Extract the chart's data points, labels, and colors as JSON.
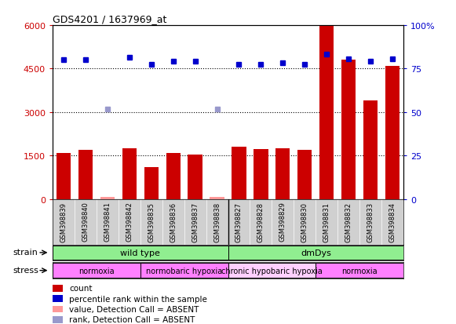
{
  "title": "GDS4201 / 1637969_at",
  "samples": [
    "GSM398839",
    "GSM398840",
    "GSM398841",
    "GSM398842",
    "GSM398835",
    "GSM398836",
    "GSM398837",
    "GSM398838",
    "GSM398827",
    "GSM398828",
    "GSM398829",
    "GSM398830",
    "GSM398831",
    "GSM398832",
    "GSM398833",
    "GSM398834"
  ],
  "count_values": [
    1600,
    1700,
    80,
    1750,
    1100,
    1580,
    1530,
    60,
    1800,
    1720,
    1750,
    1700,
    6000,
    4800,
    3400,
    4600
  ],
  "count_absent": [
    false,
    false,
    true,
    false,
    false,
    false,
    false,
    true,
    false,
    false,
    false,
    false,
    false,
    false,
    false,
    false
  ],
  "percentile_values": [
    4800,
    4800,
    null,
    4900,
    4650,
    4750,
    4750,
    null,
    4650,
    4650,
    4700,
    4650,
    5000,
    4850,
    4750,
    4850
  ],
  "percentile_absent": [
    false,
    false,
    true,
    false,
    false,
    false,
    false,
    true,
    false,
    false,
    false,
    false,
    false,
    false,
    false,
    false
  ],
  "absent_count_values": [
    null,
    null,
    80,
    null,
    null,
    null,
    null,
    60,
    null,
    null,
    null,
    null,
    null,
    null,
    null,
    null
  ],
  "absent_percentile_values": [
    null,
    null,
    3100,
    null,
    null,
    null,
    null,
    3100,
    null,
    null,
    null,
    null,
    null,
    null,
    null,
    null
  ],
  "strain_groups": [
    {
      "label": "wild type",
      "start": 0,
      "end": 8,
      "color": "#90EE90"
    },
    {
      "label": "dmDys",
      "start": 8,
      "end": 16,
      "color": "#90EE90"
    }
  ],
  "stress_groups": [
    {
      "label": "normoxia",
      "start": 0,
      "end": 4,
      "color": "#FF80FF"
    },
    {
      "label": "normobaric hypoxia",
      "start": 4,
      "end": 8,
      "color": "#FF80FF"
    },
    {
      "label": "chronic hypobaric hypoxia",
      "start": 8,
      "end": 12,
      "color": "#FFD0FF"
    },
    {
      "label": "normoxia",
      "start": 12,
      "end": 16,
      "color": "#FF80FF"
    }
  ],
  "ylim_left": [
    0,
    6000
  ],
  "ylim_right": [
    0,
    100
  ],
  "yticks_left": [
    0,
    1500,
    3000,
    4500,
    6000
  ],
  "ytick_labels_left": [
    "0",
    "1500",
    "3000",
    "4500",
    "6000"
  ],
  "yticks_right": [
    0,
    25,
    50,
    75,
    100
  ],
  "ytick_labels_right": [
    "0",
    "25",
    "50",
    "75",
    "100%"
  ],
  "bar_color": "#CC0000",
  "bar_absent_color": "#FF9999",
  "dot_color": "#0000CC",
  "dot_absent_color": "#9999CC",
  "legend_items": [
    {
      "label": "count",
      "color": "#CC0000"
    },
    {
      "label": "percentile rank within the sample",
      "color": "#0000CC"
    },
    {
      "label": "value, Detection Call = ABSENT",
      "color": "#FF9999"
    },
    {
      "label": "rank, Detection Call = ABSENT",
      "color": "#9999CC"
    }
  ]
}
